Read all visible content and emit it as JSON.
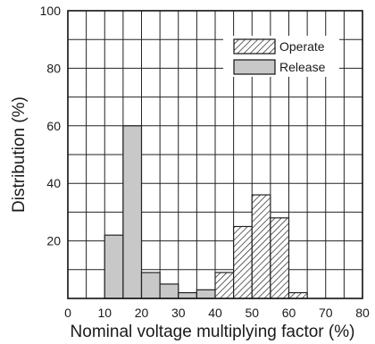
{
  "chart_data": {
    "type": "bar",
    "title": "",
    "xlabel": "Nominal voltage multiplying factor (%)",
    "ylabel": "Distribution (%)",
    "xlim": [
      0,
      80
    ],
    "ylim": [
      0,
      100
    ],
    "x_ticks": [
      "0",
      "10",
      "20",
      "30",
      "40",
      "50",
      "60",
      "70",
      "80"
    ],
    "y_ticks": [
      "20",
      "40",
      "60",
      "80",
      "100"
    ],
    "grid": true,
    "legend_position": "top-right",
    "bin_width": 5,
    "series": [
      {
        "name": "Release",
        "fill": "#c8c8c8",
        "bins": [
          {
            "x0": 10,
            "value": 22
          },
          {
            "x0": 15,
            "value": 60
          },
          {
            "x0": 20,
            "value": 9
          },
          {
            "x0": 25,
            "value": 5
          },
          {
            "x0": 30,
            "value": 2
          },
          {
            "x0": 35,
            "value": 3
          }
        ]
      },
      {
        "name": "Operate",
        "fill": "hatch",
        "bins": [
          {
            "x0": 40,
            "value": 9
          },
          {
            "x0": 45,
            "value": 25
          },
          {
            "x0": 50,
            "value": 36
          },
          {
            "x0": 55,
            "value": 28
          },
          {
            "x0": 60,
            "value": 2
          }
        ]
      }
    ]
  }
}
